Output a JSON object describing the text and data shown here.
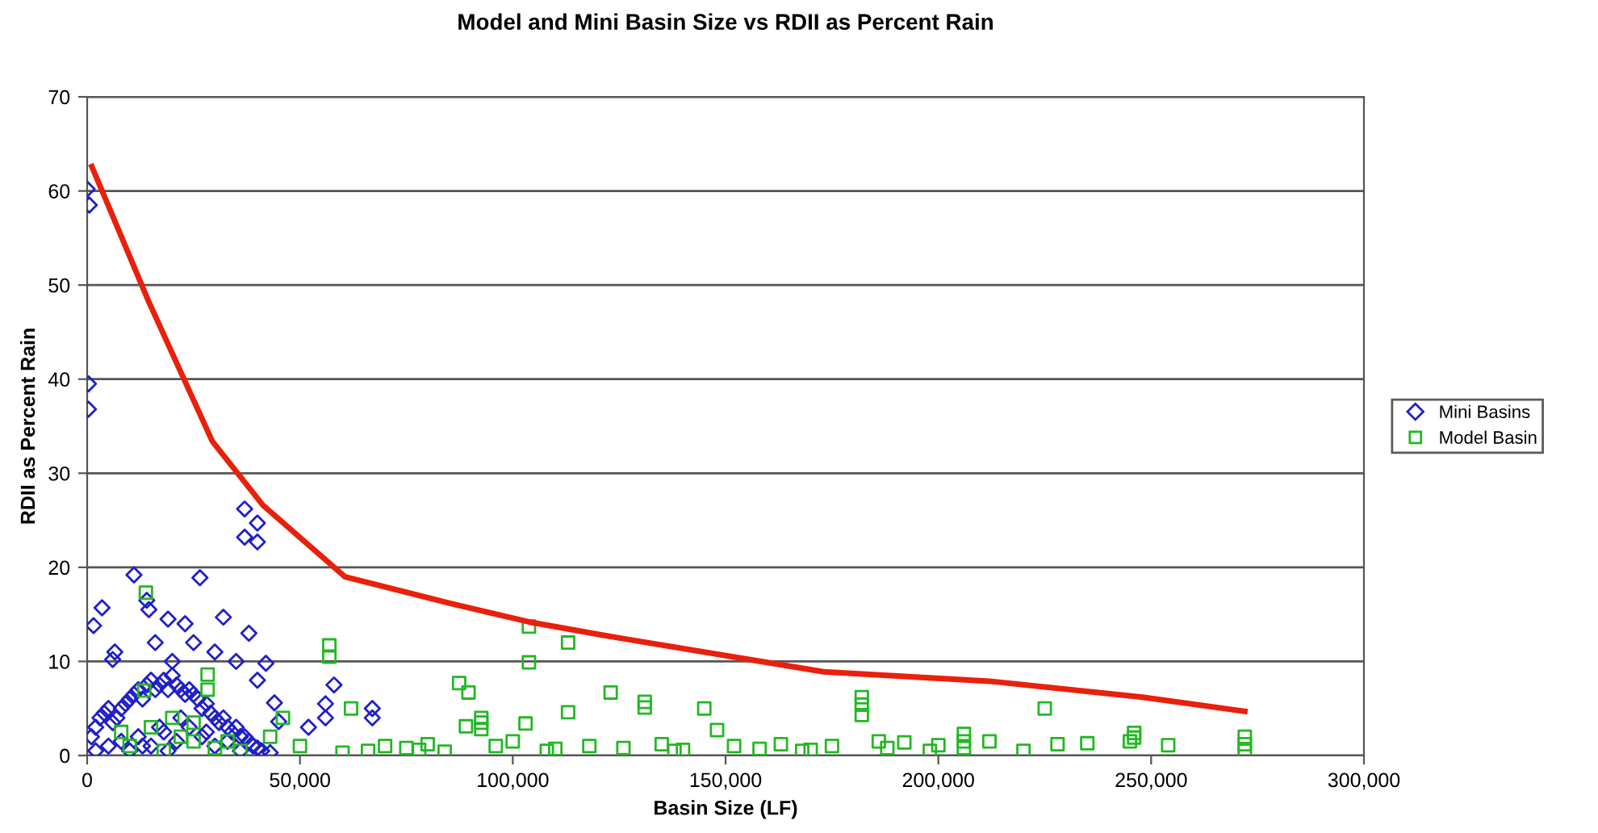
{
  "chart_data": {
    "type": "scatter",
    "title": "Model and Mini Basin Size vs RDII as Percent Rain",
    "xlabel": "Basin Size (LF)",
    "ylabel": "RDII as Percent Rain",
    "xlim": [
      0,
      300000
    ],
    "xticks": [
      {
        "value": 0,
        "label": "0"
      },
      {
        "value": 50000,
        "label": "50,000"
      },
      {
        "value": 100000,
        "label": "100,000"
      },
      {
        "value": 150000,
        "label": "150,000"
      },
      {
        "value": 200000,
        "label": "200,000"
      },
      {
        "value": 250000,
        "label": "250,000"
      },
      {
        "value": 300000,
        "label": "300,000"
      }
    ],
    "ylim": [
      0,
      70
    ],
    "yticks": [
      0,
      10,
      20,
      30,
      40,
      50,
      60,
      70
    ],
    "grid": "y",
    "legend": "right",
    "series": [
      {
        "name": "Mini Basins",
        "color": "#1f1fc8",
        "marker": "diamond",
        "x": [
          0,
          500,
          300,
          300,
          37000,
          40000,
          37000,
          40000,
          11000,
          26500,
          14000,
          14500,
          3500,
          1500,
          6500,
          6000,
          19000,
          23000,
          32000,
          38000,
          30000,
          35000,
          42000,
          25000,
          20000,
          16000,
          40000,
          44000,
          45000,
          56000,
          56000,
          52000,
          67000,
          67000,
          58000,
          1000,
          2000,
          3000,
          4000,
          5000,
          6000,
          7000,
          8000,
          9000,
          10000,
          11000,
          12000,
          13000,
          14000,
          15000,
          16000,
          17000,
          18000,
          19000,
          20000,
          21000,
          22000,
          23000,
          24000,
          25000,
          26000,
          27000,
          28000,
          29000,
          30000,
          31000,
          32000,
          33000,
          34000,
          35000,
          36000,
          37000,
          38000,
          39000,
          40000,
          2000,
          5000,
          8000,
          12000,
          15000,
          18000,
          21000,
          24000,
          27000,
          30000,
          33000,
          36000,
          41000,
          43000,
          10000,
          17000,
          22000,
          28000,
          13000,
          19000
        ],
        "values": [
          60.2,
          58.5,
          39.5,
          36.8,
          26.2,
          24.7,
          23.2,
          22.7,
          19.2,
          18.9,
          16.5,
          15.5,
          15.7,
          13.8,
          11.0,
          10.2,
          14.5,
          14.0,
          14.7,
          13.0,
          11.0,
          10.0,
          9.8,
          12.0,
          10.0,
          12.0,
          8.0,
          5.6,
          3.6,
          4.0,
          5.5,
          3.0,
          5.0,
          4.0,
          7.5,
          2.0,
          3.0,
          4.0,
          4.5,
          5.0,
          3.5,
          4.0,
          5.0,
          5.5,
          6.0,
          6.5,
          7.0,
          6.0,
          7.5,
          8.0,
          7.0,
          7.5,
          8.0,
          7.0,
          8.5,
          7.5,
          7.0,
          6.5,
          7.0,
          6.5,
          6.0,
          5.0,
          5.5,
          4.5,
          4.0,
          3.5,
          4.0,
          3.0,
          2.5,
          3.0,
          2.0,
          2.0,
          1.5,
          1.0,
          0.8,
          0.5,
          1.0,
          1.5,
          2.0,
          1.0,
          2.5,
          1.5,
          3.0,
          2.0,
          1.0,
          1.5,
          0.5,
          0.5,
          0.3,
          0.5,
          3.0,
          4.0,
          2.5,
          1.0,
          0.5
        ]
      },
      {
        "name": "Model Basin",
        "color": "#22b822",
        "marker": "square",
        "x": [
          13800,
          28300,
          28300,
          13400,
          20000,
          22000,
          25000,
          25000,
          8000,
          10000,
          15000,
          18000,
          30000,
          33000,
          36000,
          43000,
          46000,
          50000,
          56900,
          56900,
          62000,
          66000,
          70000,
          75000,
          80000,
          87400,
          89600,
          89000,
          92600,
          92600,
          92600,
          96000,
          100000,
          103000,
          103800,
          103800,
          108000,
          113000,
          113000,
          118000,
          123000,
          126000,
          131000,
          131000,
          135000,
          140000,
          145000,
          148000,
          152000,
          158000,
          163000,
          168000,
          175000,
          182000,
          182000,
          182000,
          186000,
          192000,
          198000,
          200000,
          206000,
          206000,
          206000,
          212000,
          220000,
          225000,
          228000,
          235000,
          245000,
          246000,
          246000,
          254000,
          272000,
          272000,
          272000,
          60000,
          78000,
          84000,
          110000,
          138000,
          170000,
          188000
        ],
        "values": [
          17.3,
          8.6,
          7.0,
          6.9,
          4.0,
          2.0,
          3.5,
          1.5,
          2.5,
          1.0,
          3.0,
          0.5,
          0.8,
          1.5,
          0.5,
          2.0,
          4.0,
          1.0,
          11.7,
          10.5,
          5.0,
          0.5,
          1.0,
          0.8,
          1.2,
          7.7,
          6.7,
          3.1,
          4.0,
          3.5,
          2.8,
          1.0,
          1.5,
          3.4,
          13.7,
          9.9,
          0.5,
          12.0,
          4.6,
          1.0,
          6.7,
          0.8,
          5.7,
          5.1,
          1.2,
          0.6,
          5.0,
          2.7,
          1.0,
          0.7,
          1.2,
          0.5,
          1.0,
          6.2,
          5.4,
          4.3,
          1.5,
          1.4,
          0.5,
          1.1,
          2.3,
          1.5,
          0.8,
          1.5,
          0.5,
          5.0,
          1.2,
          1.3,
          1.5,
          2.4,
          1.9,
          1.1,
          2.0,
          1.2,
          0.5,
          0.3,
          0.6,
          0.4,
          0.7,
          0.5,
          0.6,
          0.8
        ]
      },
      {
        "type": "line",
        "color": "#e8200c",
        "marker": "none",
        "x": [
          1100,
          14500,
          29400,
          41300,
          60600,
          85000,
          103800,
          121000,
          173000,
          212000,
          248000,
          272000
        ],
        "values": [
          62.6,
          48.2,
          33.4,
          26.6,
          19.0,
          16.2,
          14.2,
          12.8,
          8.9,
          7.9,
          6.2,
          4.7
        ]
      }
    ]
  }
}
